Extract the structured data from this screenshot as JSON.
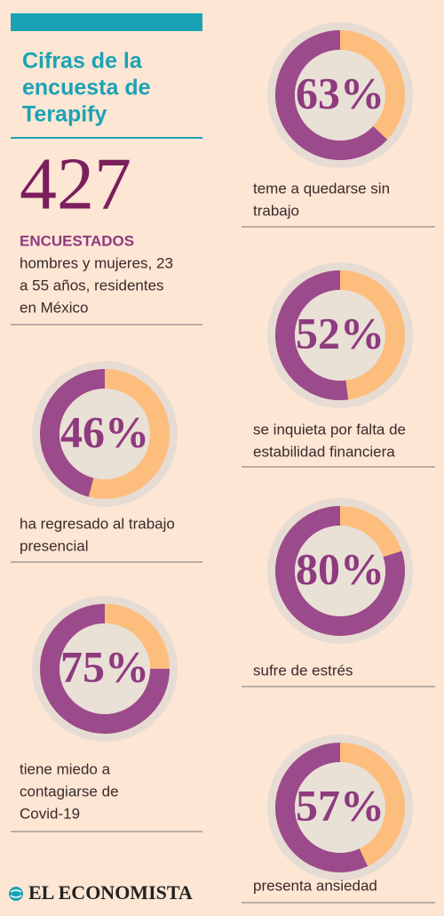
{
  "header": {
    "title": [
      "Cifras de la",
      "encuesta de",
      "Terapify"
    ]
  },
  "respondents": {
    "count": "427",
    "label": "ENCUESTADOS",
    "description": [
      "hombres y mujeres, 23",
      "a 55 años, residentes",
      "en México"
    ]
  },
  "chart_data": [
    {
      "type": "donut",
      "values": [
        63
      ],
      "value_labels": [
        "63%"
      ],
      "caption": [
        "teme a quedarse sin",
        "trabajo"
      ],
      "color": "#9b4a8c",
      "remainder_color": "#fdbd7d"
    },
    {
      "type": "donut",
      "values": [
        52
      ],
      "value_labels": [
        "52%"
      ],
      "caption": [
        "se inquieta por falta de",
        "estabilidad financiera"
      ],
      "color": "#9b4a8c",
      "remainder_color": "#fdbd7d"
    },
    {
      "type": "donut",
      "values": [
        80
      ],
      "value_labels": [
        "80%"
      ],
      "caption": [
        "sufre de estrés"
      ],
      "color": "#9b4a8c",
      "remainder_color": "#fdbd7d"
    },
    {
      "type": "donut",
      "values": [
        57
      ],
      "value_labels": [
        "57%"
      ],
      "caption": [
        "presenta ansiedad"
      ],
      "color": "#9b4a8c",
      "remainder_color": "#fdbd7d"
    },
    {
      "type": "donut",
      "values": [
        46
      ],
      "value_labels": [
        "46%"
      ],
      "caption": [
        "ha regresado al trabajo",
        "presencial"
      ],
      "color": "#9b4a8c",
      "remainder_color": "#fdbd7d"
    },
    {
      "type": "donut",
      "values": [
        75
      ],
      "value_labels": [
        "75%"
      ],
      "caption": [
        "tiene miedo a",
        "contagiarse de",
        "Covid-19"
      ],
      "color": "#9b4a8c",
      "remainder_color": "#fdbd7d"
    }
  ],
  "footer": {
    "brand": "EL ECONOMISTA"
  }
}
